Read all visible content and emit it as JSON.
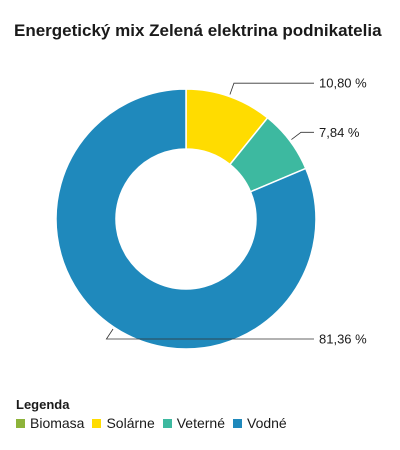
{
  "chart_data": {
    "type": "pie",
    "variant": "donut",
    "title": "Energetický mix Zelená elektrina podnikatelia",
    "categories": [
      "Biomasa",
      "Solárne",
      "Veterné",
      "Vodné"
    ],
    "values": [
      0,
      10.8,
      7.84,
      81.36
    ],
    "value_labels": [
      "",
      "10,80 %",
      "7,84 %",
      "81,36 %"
    ],
    "colors": [
      "#8db33a",
      "#ffdc00",
      "#3db9a0",
      "#1f89bc"
    ],
    "legend_title": "Legenda",
    "legend_position": "bottom-left"
  }
}
